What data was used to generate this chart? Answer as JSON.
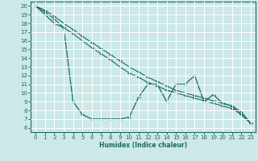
{
  "xlabel": "Humidex (Indice chaleur)",
  "bg_color": "#cce8e8",
  "grid_color": "#ffffff",
  "line_color": "#1a6b5e",
  "xlim": [
    -0.5,
    23.5
  ],
  "ylim": [
    5.5,
    20.5
  ],
  "xticks": [
    0,
    1,
    2,
    3,
    4,
    5,
    6,
    7,
    8,
    9,
    10,
    11,
    12,
    13,
    14,
    15,
    16,
    17,
    18,
    19,
    20,
    21,
    22,
    23
  ],
  "yticks": [
    6,
    7,
    8,
    9,
    10,
    11,
    12,
    13,
    14,
    15,
    16,
    17,
    18,
    19,
    20
  ],
  "line1_x": [
    0,
    1,
    2,
    3,
    4,
    5,
    6,
    7,
    8,
    9,
    10,
    11,
    12,
    13,
    14,
    15,
    16,
    17,
    18,
    19,
    20,
    21,
    22,
    23
  ],
  "line1_y": [
    20,
    19,
    18,
    17.5,
    9,
    7.5,
    7,
    7,
    7,
    7,
    7.2,
    9.5,
    11,
    11,
    9,
    11,
    11,
    12,
    9,
    9.8,
    8.8,
    8.5,
    7.5,
    6.5
  ],
  "line2_x": [
    0,
    1,
    2,
    3,
    4,
    5,
    6,
    7,
    8,
    9,
    10,
    11,
    12,
    13,
    14,
    15,
    16,
    17,
    18,
    19,
    20,
    21,
    22,
    23
  ],
  "line2_y": [
    20,
    19.3,
    18.5,
    17.5,
    16.8,
    16,
    15.2,
    14.5,
    13.8,
    13,
    12.3,
    11.8,
    11.2,
    10.8,
    10.3,
    10.0,
    9.7,
    9.4,
    9.1,
    8.8,
    8.5,
    8.2,
    7.5,
    6.5
  ],
  "line3_x": [
    0,
    1,
    2,
    3,
    4,
    5,
    6,
    7,
    8,
    9,
    10,
    11,
    12,
    13,
    14,
    15,
    16,
    17,
    18,
    19,
    20,
    21,
    22,
    23
  ],
  "line3_y": [
    20,
    19.5,
    18.8,
    18.0,
    17.3,
    16.5,
    15.8,
    15.1,
    14.4,
    13.7,
    13.0,
    12.4,
    11.8,
    11.3,
    10.8,
    10.3,
    10.0,
    9.7,
    9.4,
    9.1,
    8.8,
    8.5,
    7.8,
    6.5
  ]
}
